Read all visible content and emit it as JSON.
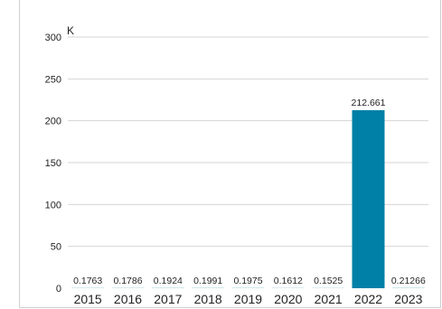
{
  "chart_data": {
    "type": "bar",
    "categories": [
      "2015",
      "2016",
      "2017",
      "2018",
      "2019",
      "2020",
      "2021",
      "2022",
      "2023"
    ],
    "values": [
      0.1763,
      0.1786,
      0.1924,
      0.1991,
      0.1975,
      0.1612,
      0.1525,
      212.661,
      0.21266
    ],
    "value_labels": [
      "0.1763",
      "0.1786",
      "0.1924",
      "0.1991",
      "0.1975",
      "0.1612",
      "0.1525",
      "212.661",
      "0.21266"
    ],
    "y_unit": "K",
    "ylim": [
      0,
      300
    ],
    "yticks": [
      0,
      50,
      100,
      150,
      200,
      250,
      300
    ],
    "grid": true,
    "bar_color": "#0080a6",
    "grid_color": "#d4d4d4"
  }
}
